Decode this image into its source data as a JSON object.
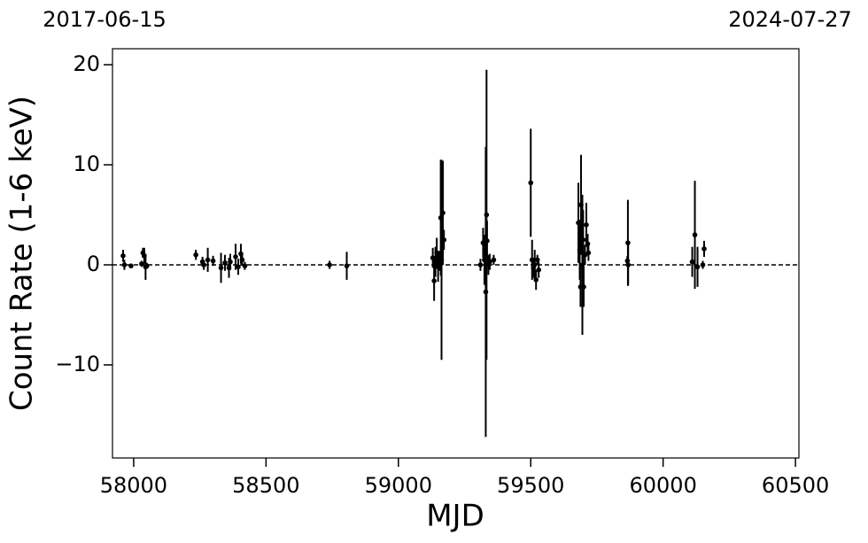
{
  "chart_data": {
    "type": "errorbar",
    "top_labels": [
      "2017-06-15",
      "2024-07-27"
    ],
    "xlabel": "MJD",
    "ylabel": "Count Rate (1-6 keV)",
    "xlim": [
      57920,
      60513
    ],
    "ylim": [
      -19.3,
      21.6
    ],
    "xticks": [
      58000,
      58500,
      59000,
      59500,
      60000,
      60500
    ],
    "yticks": [
      {
        "value": -10,
        "label": "−10"
      },
      0,
      10,
      20
    ],
    "hline": 0,
    "color": "#000000",
    "x": [
      57960,
      57965,
      57990,
      58030,
      58035,
      58040,
      58045,
      58050,
      58235,
      58260,
      58265,
      58280,
      58300,
      58330,
      58345,
      58360,
      58365,
      58385,
      58395,
      58405,
      58410,
      58420,
      58740,
      58805,
      59130,
      59135,
      59140,
      59145,
      59150,
      59155,
      59160,
      59163,
      59168,
      59172,
      59310,
      59320,
      59325,
      59330,
      59333,
      59335,
      59340,
      59345,
      59360,
      59500,
      59505,
      59510,
      59515,
      59520,
      59525,
      59530,
      59680,
      59685,
      59688,
      59690,
      59695,
      59698,
      59700,
      59705,
      59710,
      59715,
      59718,
      59865,
      59867,
      59868,
      60110,
      60120,
      60130,
      60150,
      60155
    ],
    "values": [
      0.9,
      0,
      -0.1,
      0.1,
      1.2,
      0.9,
      -0.2,
      -0.1,
      1,
      0.3,
      0,
      0.5,
      0.4,
      -0.3,
      0.2,
      -0.3,
      0.3,
      0.8,
      -0.2,
      1.1,
      0.5,
      -0.1,
      0,
      -0.1,
      0.7,
      -1.6,
      0.3,
      1.2,
      -0.2,
      0.4,
      4.7,
      0.5,
      5.2,
      2.5,
      0,
      2.2,
      0.5,
      -2.7,
      5.0,
      2.4,
      0,
      0.3,
      0.5,
      8.2,
      0.5,
      -0.3,
      0,
      -1.5,
      0.5,
      -0.5,
      4.2,
      1.5,
      -2.2,
      6.0,
      0,
      2.5,
      -2.2,
      1.0,
      4.0,
      2.1,
      1.2,
      0.4,
      2.2,
      0,
      0.3,
      3.0,
      -0.2,
      0,
      1.6
    ],
    "errors": [
      0.6,
      0.5,
      0.2,
      0.3,
      0.5,
      0.8,
      1.3,
      0.3,
      0.5,
      0.5,
      0.5,
      1.2,
      0.5,
      1.5,
      0.8,
      1.0,
      0.8,
      1.3,
      0.8,
      1.0,
      0.6,
      0.4,
      0.4,
      1.4,
      1.0,
      2.0,
      1.5,
      1.5,
      1.5,
      1.0,
      5.8,
      10,
      5.2,
      1.0,
      0.6,
      1.5,
      2.5,
      14.5,
      14.5,
      2,
      1,
      0.8,
      0.5,
      5.4,
      2,
      1,
      1.5,
      1,
      0.5,
      0.8,
      4,
      3,
      2,
      5,
      7,
      3,
      2,
      1,
      2.2,
      1,
      0.8,
      0.5,
      4.3,
      2,
      1.5,
      5.4,
      2,
      0.4,
      0.8
    ]
  }
}
